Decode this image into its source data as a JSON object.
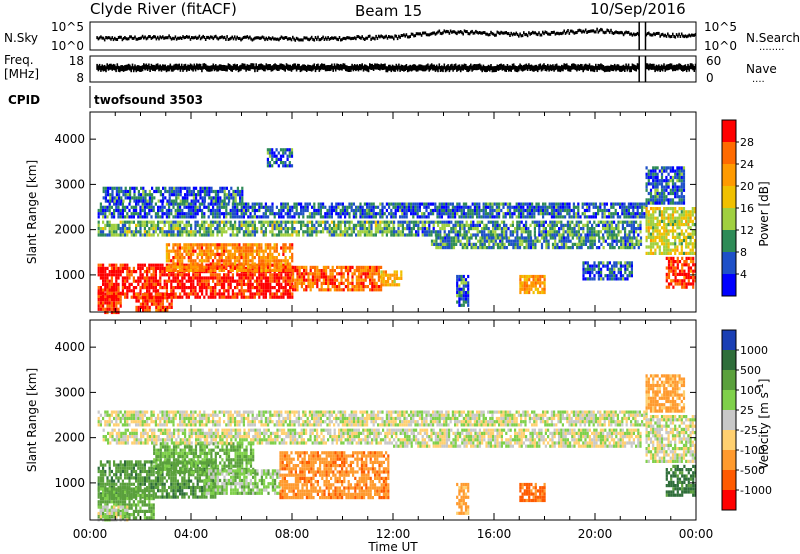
{
  "header": {
    "station": "Clyde River (fitACF)",
    "beam": "Beam 15",
    "date": "10/Sep/2016"
  },
  "strip_nsky": {
    "left_label": "N.Sky",
    "right_label": "N.Search",
    "right_dots": "........",
    "left_ticks": [
      "10^5",
      "10^0"
    ],
    "right_ticks": [
      "10^5",
      "10^0"
    ]
  },
  "strip_freq": {
    "left_label_1": "Freq.",
    "left_label_2": "[MHz]",
    "right_label": "Nave",
    "right_dots": "....",
    "left_ticks": [
      "18",
      "8"
    ],
    "right_ticks": [
      "60",
      "0"
    ]
  },
  "strip_cpid": {
    "left_label": "CPID",
    "program": "twofsound 3503"
  },
  "power_panel": {
    "ylabel": "Slant Range [km]",
    "yticks": [
      "4000",
      "3000",
      "2000",
      "1000"
    ],
    "colorbar_title": "Power [dB]",
    "colorbar_labels": [
      "28",
      "24",
      "20",
      "16",
      "12",
      "8",
      "4"
    ]
  },
  "velocity_panel": {
    "ylabel": "Slant Range [km]",
    "yticks": [
      "4000",
      "3000",
      "2000",
      "1000"
    ],
    "colorbar_title": "Velocity [m s",
    "colorbar_title_sup": "-1",
    "colorbar_title_end": "]",
    "colorbar_labels": [
      "1000",
      "500",
      "100",
      "25",
      "-25",
      "-100",
      "-500",
      "-1000"
    ]
  },
  "xaxis": {
    "ticks": [
      "00:00",
      "04:00",
      "08:00",
      "12:00",
      "16:00",
      "20:00",
      "00:00"
    ],
    "xlabel": "Time UT"
  },
  "colors": {
    "power_scale": [
      "#ff0000",
      "#ff6a00",
      "#ff9a00",
      "#f0c000",
      "#a0d040",
      "#2e8b57",
      "#1e50c8",
      "#0000ff"
    ],
    "velocity_scale": [
      "#1a3fb4",
      "#2f6e3a",
      "#5aa03c",
      "#7fd04a",
      "#c8c8c8",
      "#ffd070",
      "#ff9a2e",
      "#ff5a00",
      "#ff0000"
    ]
  },
  "chart_data": [
    {
      "type": "line",
      "name": "N.Sky / N.Search",
      "x_hours": [
        0,
        0.5,
        3,
        6,
        9,
        12,
        14,
        17,
        20,
        21.7,
        22,
        24
      ],
      "y_norm": [
        0.45,
        0.4,
        0.45,
        0.42,
        0.4,
        0.45,
        0.65,
        0.55,
        0.7,
        0.55,
        0.55,
        0.5
      ],
      "gap_hours": [
        21.75,
        22.0
      ],
      "xlim": [
        0,
        24
      ]
    },
    {
      "type": "line",
      "name": "Freq. / Nave",
      "x_hours": [
        0,
        24
      ],
      "y_norm": [
        0.55,
        0.55
      ],
      "gap_hours": [
        21.75,
        22.0
      ],
      "xlim": [
        0,
        24
      ]
    },
    {
      "type": "heatmap",
      "name": "Power",
      "xlabel": "Time UT",
      "ylabel": "Slant Range [km]",
      "xlim": [
        0,
        24
      ],
      "ylim": [
        180,
        4600
      ],
      "clim": [
        0,
        32
      ],
      "regions": [
        {
          "t0": 0.3,
          "t1": 8.0,
          "r0": 500,
          "r1": 1250,
          "value": 28
        },
        {
          "t0": 0.3,
          "t1": 1.2,
          "r0": 200,
          "r1": 700,
          "value": 27
        },
        {
          "t0": 1.8,
          "t1": 3.2,
          "r0": 200,
          "r1": 600,
          "value": 26
        },
        {
          "t0": 3.0,
          "t1": 8.0,
          "r0": 1100,
          "r1": 1700,
          "value": 22
        },
        {
          "t0": 8.0,
          "t1": 11.5,
          "r0": 700,
          "r1": 1200,
          "value": 24
        },
        {
          "t0": 11.5,
          "t1": 12.3,
          "r0": 800,
          "r1": 1100,
          "value": 18
        },
        {
          "t0": 0.3,
          "t1": 12.0,
          "r0": 1900,
          "r1": 2200,
          "value": 10
        },
        {
          "t0": 0.3,
          "t1": 22.0,
          "r0": 2300,
          "r1": 2600,
          "value": 6
        },
        {
          "t0": 0.5,
          "t1": 6.0,
          "r0": 2650,
          "r1": 2950,
          "value": 6
        },
        {
          "t0": 12.0,
          "t1": 21.8,
          "r0": 1900,
          "r1": 2200,
          "value": 8
        },
        {
          "t0": 13.5,
          "t1": 21.8,
          "r0": 1600,
          "r1": 1850,
          "value": 8
        },
        {
          "t0": 14.5,
          "t1": 15.0,
          "r0": 300,
          "r1": 1000,
          "value": 6
        },
        {
          "t0": 17.0,
          "t1": 18.0,
          "r0": 600,
          "r1": 1000,
          "value": 20
        },
        {
          "t0": 19.5,
          "t1": 21.5,
          "r0": 900,
          "r1": 1300,
          "value": 6
        },
        {
          "t0": 22.0,
          "t1": 24.0,
          "r0": 1500,
          "r1": 2500,
          "value": 14
        },
        {
          "t0": 22.8,
          "t1": 24.0,
          "r0": 700,
          "r1": 1400,
          "value": 26
        },
        {
          "t0": 22.0,
          "t1": 23.5,
          "r0": 2600,
          "r1": 3400,
          "value": 6
        },
        {
          "t0": 7.0,
          "t1": 8.0,
          "r0": 3400,
          "r1": 3800,
          "value": 6
        }
      ]
    },
    {
      "type": "heatmap",
      "name": "Velocity",
      "xlabel": "Time UT",
      "ylabel": "Slant Range [km]",
      "xlim": [
        0,
        24
      ],
      "ylim": [
        180,
        4600
      ],
      "clim": [
        -1000,
        1000
      ],
      "regions": [
        {
          "t0": 0.3,
          "t1": 5.0,
          "r0": 700,
          "r1": 1500,
          "value": 200
        },
        {
          "t0": 0.3,
          "t1": 2.5,
          "r0": 200,
          "r1": 900,
          "value": 150
        },
        {
          "t0": 2.5,
          "t1": 6.5,
          "r0": 1200,
          "r1": 1900,
          "value": 120
        },
        {
          "t0": 0.3,
          "t1": 1.5,
          "r0": 200,
          "r1": 500,
          "value": 20
        },
        {
          "t0": 4.5,
          "t1": 7.5,
          "r0": 800,
          "r1": 1300,
          "value": 60
        },
        {
          "t0": 7.5,
          "t1": 11.8,
          "r0": 700,
          "r1": 1700,
          "value": -200
        },
        {
          "t0": 0.3,
          "t1": 22.0,
          "r0": 2300,
          "r1": 2600,
          "value": 0
        },
        {
          "t0": 0.5,
          "t1": 12.0,
          "r0": 1900,
          "r1": 2200,
          "value": 0
        },
        {
          "t0": 12.0,
          "t1": 21.8,
          "r0": 1800,
          "r1": 2200,
          "value": 0
        },
        {
          "t0": 14.5,
          "t1": 15.0,
          "r0": 300,
          "r1": 1000,
          "value": -150
        },
        {
          "t0": 17.0,
          "t1": 18.0,
          "r0": 600,
          "r1": 1000,
          "value": -300
        },
        {
          "t0": 22.0,
          "t1": 24.0,
          "r0": 1500,
          "r1": 2500,
          "value": 0
        },
        {
          "t0": 22.8,
          "t1": 24.0,
          "r0": 700,
          "r1": 1400,
          "value": 300
        },
        {
          "t0": 22.0,
          "t1": 23.5,
          "r0": 2600,
          "r1": 3400,
          "value": -150
        }
      ]
    }
  ]
}
